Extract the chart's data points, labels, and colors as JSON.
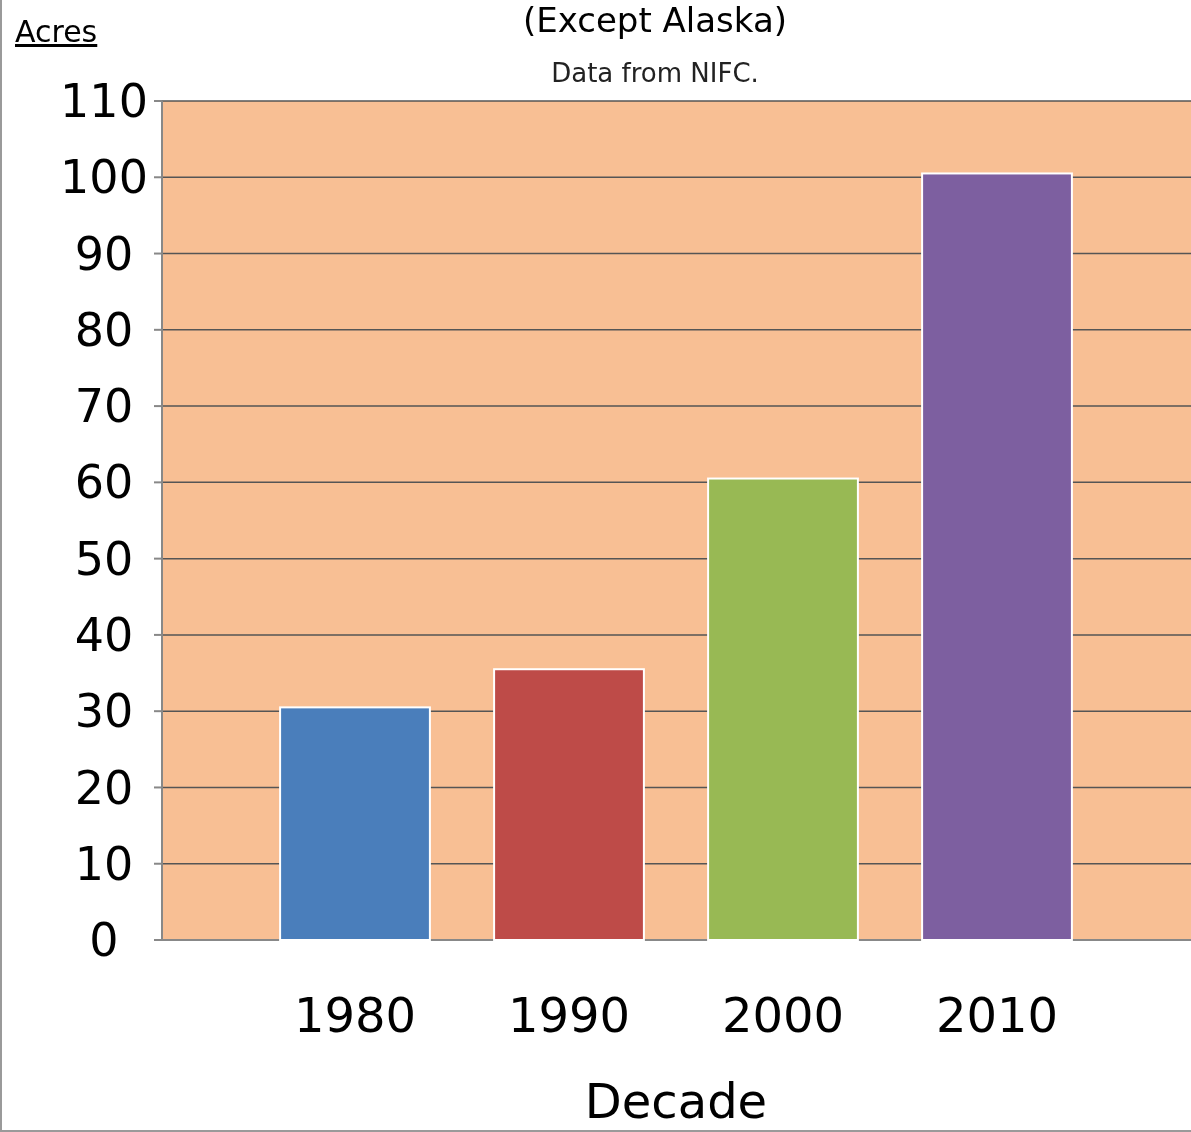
{
  "chart_data": {
    "type": "bar",
    "title": "(Except Alaska)",
    "ylabel": "Acres",
    "xlabel": "Decade",
    "annotations": [
      "Data from NIFC."
    ],
    "categories": [
      "1980",
      "1990",
      "2000",
      "2010"
    ],
    "values": [
      30.5,
      35.5,
      60.5,
      100.5
    ],
    "colors": [
      "#4a7ebb",
      "#be4b48",
      "#98b954",
      "#7d5fa0"
    ],
    "ylim": [
      0,
      110
    ],
    "yticks": [
      0,
      10,
      20,
      30,
      40,
      50,
      60,
      70,
      80,
      90,
      100,
      110
    ],
    "grid": "y"
  }
}
